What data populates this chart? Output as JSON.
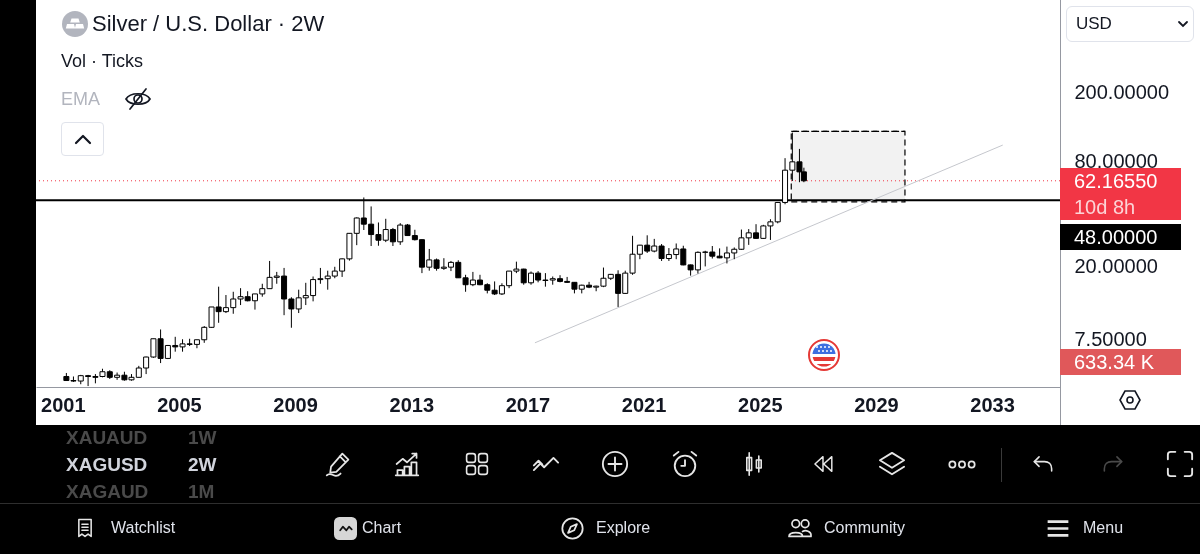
{
  "chart_data": {
    "type": "candlestick",
    "title": "Silver / U.S. Dollar · 2W",
    "subtitle": "Vol · Ticks",
    "annotations": [
      "EMA",
      "USD",
      "XAUAUD",
      "1W",
      "XAGUSD",
      "2W",
      "XAGAUD",
      "1M",
      "Watchlist",
      "Chart",
      "Explore",
      "Community",
      "Menu",
      "633.34 K"
    ],
    "x": [
      "2001-02-15",
      "2001-05-15",
      "2001-08-15",
      "2001-11-15",
      "2002-02-15",
      "2002-05-15",
      "2002-08-15",
      "2002-11-15",
      "2003-02-15",
      "2003-05-15",
      "2003-08-15",
      "2003-11-15",
      "2004-02-15",
      "2004-05-15",
      "2004-08-15",
      "2004-11-15",
      "2005-02-15",
      "2005-05-15",
      "2005-08-15",
      "2005-11-15",
      "2006-02-15",
      "2006-05-15",
      "2006-08-15",
      "2006-11-15",
      "2007-02-15",
      "2007-05-15",
      "2007-08-15",
      "2007-11-15",
      "2008-02-15",
      "2008-05-15",
      "2008-08-15",
      "2008-11-15",
      "2009-02-15",
      "2009-05-15",
      "2009-08-15",
      "2009-11-15",
      "2010-02-15",
      "2010-05-15",
      "2010-08-15",
      "2010-11-15",
      "2011-02-15",
      "2011-05-15",
      "2011-08-15",
      "2011-11-15",
      "2012-02-15",
      "2012-05-15",
      "2012-08-15",
      "2012-11-15",
      "2013-02-15",
      "2013-05-15",
      "2013-08-15",
      "2013-11-15",
      "2014-02-15",
      "2014-05-15",
      "2014-08-15",
      "2014-11-15",
      "2015-02-15",
      "2015-05-15",
      "2015-08-15",
      "2015-11-15",
      "2016-02-15",
      "2016-05-15",
      "2016-08-15",
      "2016-11-15",
      "2017-02-15",
      "2017-05-15",
      "2017-08-15",
      "2017-11-15",
      "2018-02-15",
      "2018-05-15",
      "2018-08-15",
      "2018-11-15",
      "2019-02-15",
      "2019-05-15",
      "2019-08-15",
      "2019-11-15",
      "2020-02-15",
      "2020-05-15",
      "2020-08-15",
      "2020-11-15",
      "2021-02-15",
      "2021-05-15",
      "2021-08-15",
      "2021-11-15",
      "2022-02-15",
      "2022-05-15",
      "2022-08-15",
      "2022-11-15",
      "2023-02-15",
      "2023-05-15",
      "2023-08-15",
      "2023-11-15",
      "2024-02-15",
      "2024-05-15",
      "2024-08-15",
      "2024-11-15",
      "2025-02-15",
      "2025-05-15",
      "2025-08-15",
      "2025-11-15",
      "2026-02-15",
      "2026-05-15",
      "2026-07-10"
    ],
    "ohlc": [
      [
        4.6,
        4.82,
        4.35,
        4.36
      ],
      [
        4.36,
        4.6,
        4.28,
        4.33
      ],
      [
        4.33,
        4.7,
        4.15,
        4.65
      ],
      [
        4.65,
        4.7,
        4.05,
        4.6
      ],
      [
        4.6,
        4.75,
        4.2,
        4.55
      ],
      [
        4.6,
        5.1,
        4.55,
        4.9
      ],
      [
        4.9,
        5.0,
        4.45,
        4.55
      ],
      [
        4.55,
        4.85,
        4.4,
        4.68
      ],
      [
        4.68,
        4.9,
        4.35,
        4.4
      ],
      [
        4.4,
        4.75,
        4.35,
        4.55
      ],
      [
        4.55,
        5.3,
        4.55,
        5.15
      ],
      [
        5.15,
        5.99,
        4.75,
        5.96
      ],
      [
        5.96,
        7.6,
        5.9,
        7.6
      ],
      [
        7.6,
        8.6,
        5.5,
        5.85
      ],
      [
        5.85,
        7.0,
        5.8,
        6.95
      ],
      [
        6.95,
        7.8,
        6.4,
        6.82
      ],
      [
        6.82,
        7.55,
        6.4,
        7.1
      ],
      [
        7.1,
        7.6,
        6.9,
        7.05
      ],
      [
        7.05,
        7.5,
        6.7,
        7.5
      ],
      [
        7.5,
        9.0,
        7.2,
        8.85
      ],
      [
        8.85,
        11.6,
        8.8,
        11.6
      ],
      [
        11.6,
        15.2,
        9.4,
        10.9
      ],
      [
        10.9,
        13.6,
        10.7,
        11.5
      ],
      [
        11.5,
        14.2,
        10.6,
        12.9
      ],
      [
        12.9,
        14.9,
        11.9,
        13.3
      ],
      [
        13.3,
        14.3,
        12.5,
        12.6
      ],
      [
        12.6,
        13.8,
        11.2,
        13.8
      ],
      [
        13.8,
        15.8,
        13.3,
        14.8
      ],
      [
        14.8,
        21.4,
        14.8,
        17.2
      ],
      [
        17.2,
        18.5,
        15.8,
        17.5
      ],
      [
        17.5,
        19.5,
        10.4,
        12.9
      ],
      [
        12.9,
        13.2,
        8.8,
        11.3
      ],
      [
        11.3,
        14.6,
        10.7,
        13.1
      ],
      [
        13.1,
        16.0,
        11.9,
        13.5
      ],
      [
        13.5,
        17.4,
        12.5,
        16.7
      ],
      [
        16.7,
        19.5,
        15.8,
        16.9
      ],
      [
        16.9,
        18.8,
        14.6,
        17.5
      ],
      [
        17.5,
        19.8,
        17.0,
        18.7
      ],
      [
        18.7,
        22.1,
        17.3,
        22.0
      ],
      [
        22.0,
        31.0,
        21.5,
        30.9
      ],
      [
        30.9,
        38.2,
        26.4,
        37.9
      ],
      [
        37.9,
        49.8,
        32.3,
        34.9
      ],
      [
        34.9,
        44.2,
        26.1,
        30.4
      ],
      [
        30.4,
        35.7,
        26.2,
        28.2
      ],
      [
        28.2,
        37.5,
        27.5,
        32.5
      ],
      [
        32.5,
        33.2,
        26.1,
        27.6
      ],
      [
        27.6,
        35.4,
        26.5,
        34.5
      ],
      [
        34.5,
        35.0,
        29.9,
        30.0
      ],
      [
        30.0,
        32.4,
        28.1,
        28.4
      ],
      [
        28.4,
        28.5,
        18.2,
        19.7
      ],
      [
        19.7,
        25.1,
        18.8,
        21.7
      ],
      [
        21.7,
        22.1,
        18.8,
        19.4
      ],
      [
        19.4,
        22.2,
        19.0,
        19.7
      ],
      [
        19.7,
        21.4,
        18.7,
        21.0
      ],
      [
        21.0,
        21.6,
        17.1,
        17.1
      ],
      [
        17.1,
        17.8,
        14.2,
        15.6
      ],
      [
        15.6,
        18.5,
        15.3,
        16.6
      ],
      [
        16.6,
        17.8,
        15.5,
        15.6
      ],
      [
        15.6,
        15.9,
        13.9,
        14.5
      ],
      [
        14.5,
        16.3,
        13.6,
        13.8
      ],
      [
        13.8,
        15.9,
        13.6,
        15.4
      ],
      [
        15.4,
        18.7,
        14.9,
        18.7
      ],
      [
        18.7,
        21.2,
        18.2,
        19.2
      ],
      [
        19.2,
        19.3,
        15.6,
        16.0
      ],
      [
        16.0,
        18.6,
        15.6,
        18.2
      ],
      [
        18.2,
        18.7,
        16.1,
        16.6
      ],
      [
        16.6,
        18.2,
        15.2,
        16.5
      ],
      [
        16.6,
        17.4,
        15.6,
        16.9
      ],
      [
        16.9,
        17.7,
        16.1,
        16.3
      ],
      [
        16.3,
        17.3,
        16.0,
        16.1
      ],
      [
        16.1,
        16.1,
        13.9,
        14.7
      ],
      [
        14.7,
        15.6,
        13.9,
        15.5
      ],
      [
        15.5,
        16.2,
        14.9,
        15.1
      ],
      [
        15.1,
        15.4,
        14.3,
        15.3
      ],
      [
        15.3,
        19.6,
        15.1,
        17.0
      ],
      [
        17.0,
        18.0,
        16.6,
        17.9
      ],
      [
        17.9,
        18.9,
        11.6,
        13.9
      ],
      [
        13.9,
        18.8,
        13.8,
        18.2
      ],
      [
        18.2,
        29.9,
        17.8,
        23.4
      ],
      [
        23.4,
        26.5,
        21.9,
        26.4
      ],
      [
        26.4,
        30.1,
        23.8,
        24.4
      ],
      [
        24.4,
        28.7,
        24.0,
        26.1
      ],
      [
        26.1,
        26.8,
        21.4,
        22.1
      ],
      [
        22.1,
        25.4,
        21.4,
        23.3
      ],
      [
        23.3,
        27.0,
        21.9,
        25.1
      ],
      [
        25.1,
        26.2,
        20.2,
        20.3
      ],
      [
        20.3,
        20.4,
        17.6,
        19.0
      ],
      [
        19.0,
        24.3,
        18.1,
        24.0
      ],
      [
        24.0,
        24.5,
        19.9,
        24.1
      ],
      [
        24.1,
        26.1,
        22.1,
        22.8
      ],
      [
        22.8,
        25.3,
        22.2,
        22.3
      ],
      [
        22.3,
        25.9,
        20.7,
        23.8
      ],
      [
        23.8,
        25.6,
        21.9,
        25.0
      ],
      [
        25.0,
        32.5,
        24.8,
        29.1
      ],
      [
        29.1,
        32.7,
        26.5,
        31.1
      ],
      [
        31.1,
        34.9,
        28.7,
        28.9
      ],
      [
        28.9,
        34.6,
        28.7,
        34.1
      ],
      [
        34.1,
        37.3,
        28.3,
        36.0
      ],
      [
        36.0,
        46.9,
        35.3,
        46.6
      ],
      [
        46.6,
        84.0,
        45.5,
        71.6
      ],
      [
        71.6,
        118,
        62,
        80
      ],
      [
        80,
        95,
        61,
        70
      ],
      [
        70,
        74,
        61,
        62.1655
      ]
    ],
    "color": "#000000",
    "series": [
      {
        "type": "line",
        "x": [
          "2017-04-05",
          "2033-05-15"
        ],
        "values": [
          7.2,
          100
        ],
        "color": "#c5c7cd"
      },
      {
        "type": "line",
        "x": [
          "2026-02-01",
          "2030-01-01"
        ],
        "values": [
          120,
          120
        ],
        "lower": [
          47,
          47
        ],
        "upper": [
          120,
          120
        ],
        "color": "#000000",
        "line_style": "dashed"
      }
    ],
    "xlim": [
      "2000-01-30",
      "2035-05-05"
    ],
    "xticks": [
      "2001",
      "2005",
      "2009",
      "2013",
      "2017",
      "2021",
      "2025",
      "2029",
      "2033"
    ],
    "ylim": [
      4,
      689
    ],
    "yticks": [
      {
        "value": 7.5,
        "label": "7.50000"
      },
      {
        "value": 20,
        "label": "20.00000"
      },
      {
        "value": 80,
        "label": "80.00000"
      },
      {
        "value": 200,
        "label": "200.00000"
      }
    ],
    "log": "y",
    "ref_lines": [
      {
        "axis": "y",
        "value": 62.1655,
        "label": "62.16550\n10d 8h",
        "color": "#f23645",
        "line_style": "dotted"
      },
      {
        "axis": "y",
        "value": 48,
        "label": "48.00000",
        "color": "#000000"
      }
    ]
  }
}
